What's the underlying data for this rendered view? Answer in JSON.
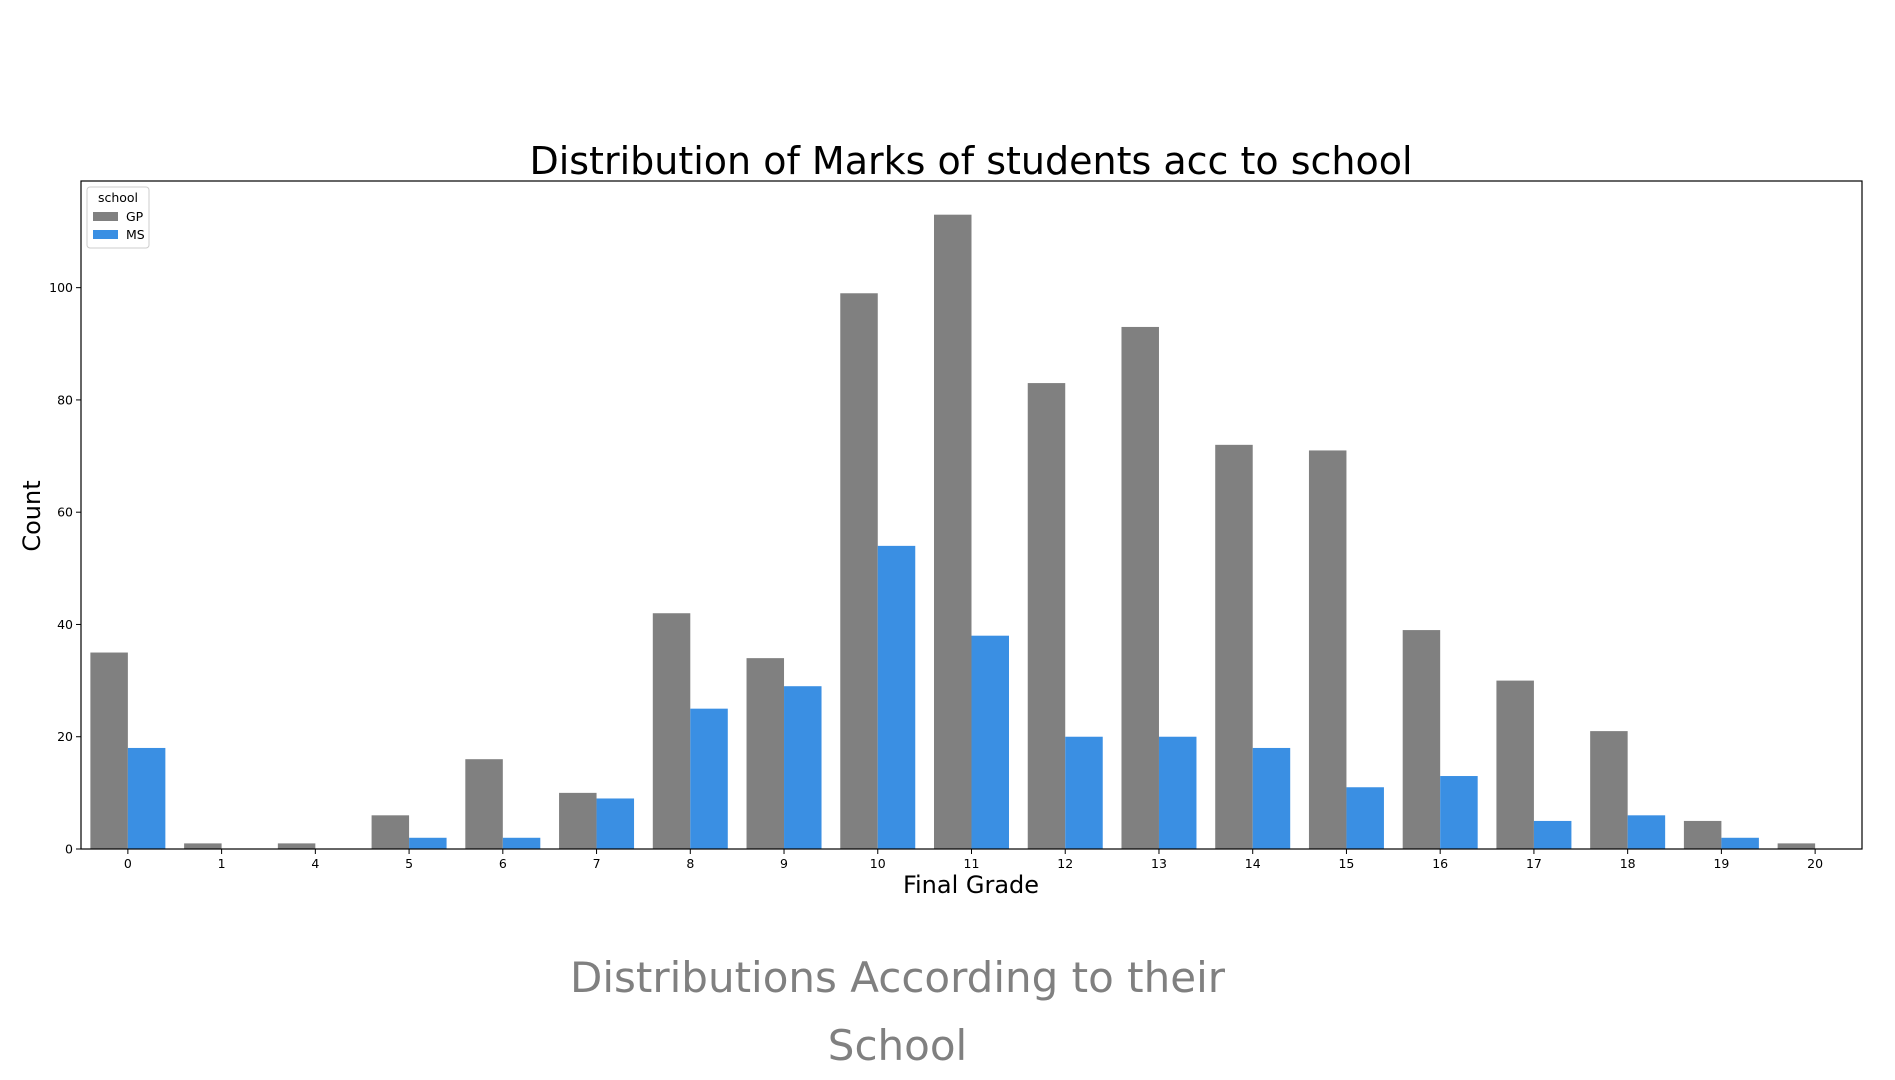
{
  "caption": "Distributions According to their School",
  "chart_data": {
    "type": "bar",
    "title": "Distribution of Marks of students  acc to school",
    "xlabel": "Final Grade",
    "ylabel": "Count",
    "categories": [
      "0",
      "1",
      "4",
      "5",
      "6",
      "7",
      "8",
      "9",
      "10",
      "11",
      "12",
      "13",
      "14",
      "15",
      "16",
      "17",
      "18",
      "19",
      "20"
    ],
    "series": [
      {
        "name": "GP",
        "color": "#808080",
        "values": [
          35,
          1,
          1,
          6,
          16,
          10,
          42,
          34,
          99,
          113,
          83,
          93,
          72,
          71,
          39,
          30,
          21,
          5,
          1
        ]
      },
      {
        "name": "MS",
        "color": "#3a8fe3",
        "values": [
          18,
          0,
          0,
          2,
          2,
          9,
          25,
          29,
          54,
          38,
          20,
          20,
          18,
          11,
          13,
          5,
          6,
          2,
          0
        ]
      }
    ],
    "ylim": [
      0,
      119
    ],
    "yticks": [
      0,
      20,
      40,
      60,
      80,
      100
    ],
    "legend": {
      "title": "school",
      "position": "top-left"
    },
    "grid": false
  }
}
